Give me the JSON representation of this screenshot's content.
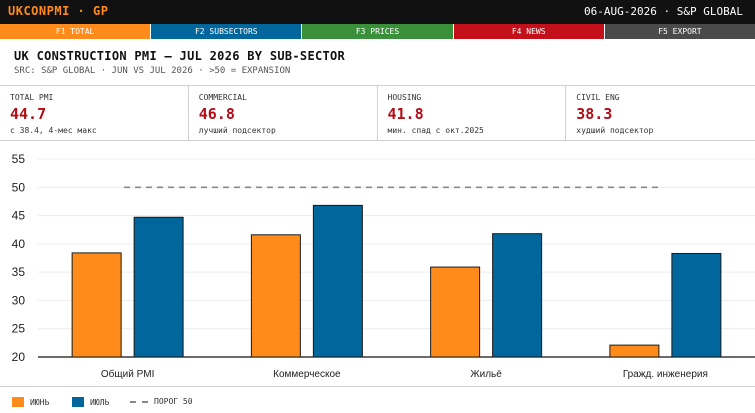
{
  "header": {
    "ticker": "UKCONPMI · GP",
    "date_source": "06-AUG-2026 · S&P GLOBAL"
  },
  "function_keys": [
    {
      "label": "F1 TOTAL",
      "color": "#ff8c1a"
    },
    {
      "label": "F2 SUBSECTORS",
      "color": "#00669b"
    },
    {
      "label": "F3 PRICES",
      "color": "#3a8f3a"
    },
    {
      "label": "F4 NEWS",
      "color": "#c4101a"
    },
    {
      "label": "F5 EXPORT",
      "color": "#4a4a4a"
    }
  ],
  "title": "UK CONSTRUCTION PMI — JUL 2026 BY SUB-SECTOR",
  "subtitle": "SRC: S&P GLOBAL · JUN VS JUL 2026 · >50 = EXPANSION",
  "kpis": [
    {
      "label": "TOTAL PMI",
      "value": "44.7",
      "note": "с 38.4, 4-мес макс"
    },
    {
      "label": "COMMERCIAL",
      "value": "46.8",
      "note": "лучший подсектор"
    },
    {
      "label": "HOUSING",
      "value": "41.8",
      "note": "мин. спад с окт.2025"
    },
    {
      "label": "CIVIL ENG",
      "value": "38.3",
      "note": "худший подсектор"
    }
  ],
  "chart_data": {
    "type": "bar",
    "title": "",
    "xlabel": "",
    "ylabel": "",
    "categories": [
      "Общий PMI",
      "Коммерческое",
      "Жильё",
      "Гражд. инженерия"
    ],
    "series": [
      {
        "name": "ИЮНЬ",
        "color": "#ff8c1a",
        "values": [
          38.4,
          41.6,
          35.9,
          22.1
        ]
      },
      {
        "name": "ИЮЛЬ",
        "color": "#00669b",
        "values": [
          44.7,
          46.8,
          41.8,
          38.3
        ]
      }
    ],
    "ylim": [
      20,
      55
    ],
    "yticks": [
      20,
      25,
      30,
      35,
      40,
      45,
      50,
      55
    ],
    "threshold": {
      "name": "ПОРОГ 50",
      "value": 50
    },
    "grid": true,
    "legend_position": "bottom-left"
  }
}
